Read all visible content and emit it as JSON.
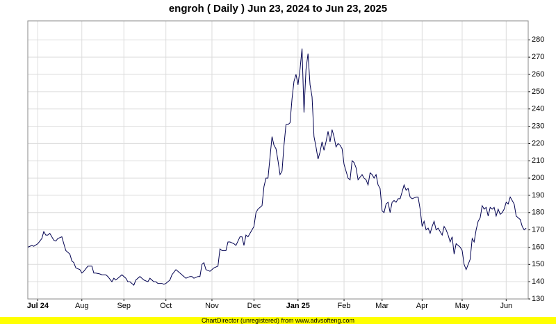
{
  "chart_data": {
    "type": "line",
    "title": "engroh ( Daily ) Jun 23, 2024 to Jun 23, 2025",
    "footer": "ChartDirector (unregistered) from www.advsofteng.com",
    "xlim": [
      0,
      250
    ],
    "ylim": [
      130,
      291
    ],
    "xticks": [
      {
        "value": 5,
        "label": "Jul 24"
      },
      {
        "value": 27,
        "label": "Aug"
      },
      {
        "value": 48,
        "label": "Sep"
      },
      {
        "value": 69,
        "label": "Oct"
      },
      {
        "value": 92,
        "label": "Nov"
      },
      {
        "value": 113,
        "label": "Dec"
      },
      {
        "value": 135,
        "label": "Jan 25"
      },
      {
        "value": 158,
        "label": "Feb"
      },
      {
        "value": 177,
        "label": "Mar"
      },
      {
        "value": 197,
        "label": "Apr"
      },
      {
        "value": 217,
        "label": "May"
      },
      {
        "value": 239,
        "label": "Jun"
      }
    ],
    "yticks": [
      130,
      140,
      150,
      160,
      170,
      180,
      190,
      200,
      210,
      220,
      230,
      240,
      250,
      260,
      270,
      280
    ],
    "grid": true,
    "series": [
      {
        "name": "engroh",
        "color": "#000050",
        "x": [
          0,
          2,
          3,
          5,
          7,
          8,
          9,
          10,
          11,
          13,
          14,
          15,
          17,
          18,
          19,
          21,
          22,
          23,
          24,
          26,
          27,
          28,
          30,
          32,
          33,
          34,
          36,
          37,
          39,
          40,
          42,
          43,
          44,
          46,
          47,
          49,
          50,
          51,
          53,
          54,
          56,
          57,
          58,
          60,
          61,
          63,
          64,
          65,
          67,
          68,
          69,
          71,
          72,
          74,
          75,
          76,
          78,
          79,
          81,
          82,
          83,
          85,
          86,
          87,
          88,
          89,
          91,
          92,
          93,
          95,
          96,
          97,
          99,
          100,
          101,
          103,
          104,
          106,
          107,
          108,
          109,
          110,
          111,
          113,
          114,
          115,
          117,
          118,
          119,
          120,
          121,
          122,
          123,
          124,
          125,
          126,
          127,
          128,
          129,
          130,
          131,
          132,
          133,
          134,
          135,
          136,
          137,
          138,
          139,
          140,
          141,
          142,
          143,
          144,
          145,
          146,
          147,
          148,
          149,
          150,
          151,
          152,
          153,
          154,
          155,
          156,
          157,
          158,
          159,
          160,
          161,
          162,
          163,
          164,
          165,
          167,
          168,
          169,
          170,
          171,
          172,
          173,
          174,
          175,
          176,
          177,
          178,
          179,
          180,
          181,
          182,
          183,
          184,
          185,
          186,
          187,
          188,
          189,
          190,
          191,
          192,
          194,
          195,
          196,
          197,
          198,
          199,
          200,
          201,
          202,
          203,
          204,
          205,
          206,
          207,
          208,
          209,
          210,
          211,
          212,
          213,
          214,
          215,
          216,
          217,
          218,
          219,
          221,
          222,
          223,
          224,
          225,
          226,
          227,
          228,
          229,
          230,
          231,
          232,
          233,
          234,
          235,
          236,
          237,
          238,
          239,
          240,
          241,
          243,
          244,
          245,
          246,
          247,
          248,
          249
        ],
        "values": [
          160,
          161,
          160.5,
          162,
          165,
          169,
          167,
          167,
          168,
          164,
          163.5,
          165,
          166,
          162,
          158,
          156,
          152,
          151,
          148,
          147,
          145,
          146,
          149,
          149,
          145,
          145,
          144.5,
          144,
          144,
          143,
          140,
          142,
          141,
          143,
          144,
          142,
          140,
          140,
          138,
          141,
          143,
          142,
          141,
          140,
          142,
          140,
          140,
          139,
          139,
          138.5,
          139,
          141,
          144,
          147,
          146,
          145,
          143,
          142,
          143,
          143,
          142,
          143,
          143,
          150,
          151,
          147,
          146,
          147,
          148,
          149,
          159,
          158,
          158,
          163,
          163,
          162,
          161,
          166,
          166,
          161,
          167,
          166,
          168,
          172,
          180,
          182,
          184,
          195,
          200,
          200,
          212,
          224,
          219,
          217,
          210,
          202,
          204,
          219,
          231,
          231,
          232,
          246,
          256,
          260,
          254,
          263,
          275,
          238,
          263,
          272,
          254,
          247,
          224,
          218,
          211,
          215,
          221,
          216,
          221,
          227,
          221,
          228,
          224,
          218,
          220,
          219,
          217,
          208,
          204,
          200,
          199,
          210,
          209,
          206,
          199,
          202,
          200,
          199,
          196,
          203,
          202,
          200,
          202,
          196,
          194,
          181,
          180,
          185,
          186,
          180,
          186,
          187,
          186,
          188,
          188,
          192,
          196,
          193,
          194,
          189,
          188,
          189,
          189,
          182,
          172,
          175,
          170,
          171,
          168,
          172,
          175,
          170,
          171,
          169,
          167,
          172,
          170,
          167,
          163,
          166,
          156,
          162,
          161,
          160,
          158,
          150,
          147,
          153,
          165,
          163,
          170,
          175,
          177,
          184,
          182,
          183,
          178,
          183,
          182,
          183,
          178,
          182,
          179,
          180,
          182,
          186,
          185,
          189,
          185,
          178,
          177,
          176,
          172,
          170,
          171
        ]
      }
    ]
  }
}
